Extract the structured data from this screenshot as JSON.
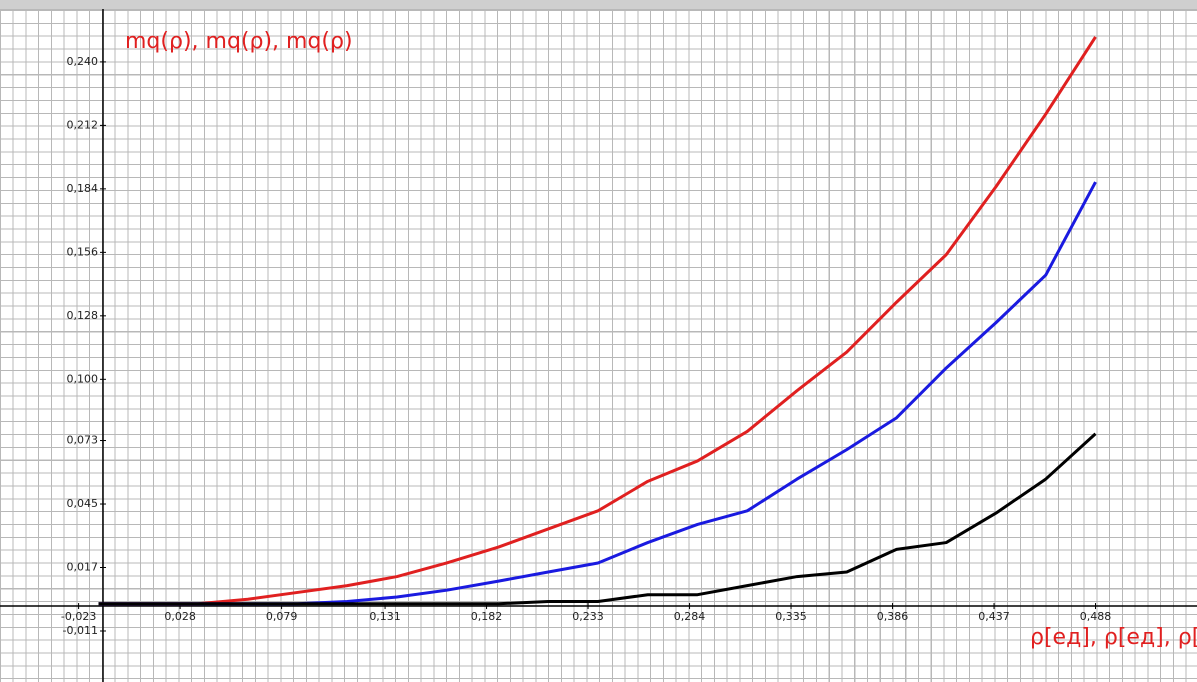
{
  "chart_data": {
    "type": "line",
    "title": "mq(ρ), mq(ρ), mq(ρ)",
    "x_label": "ρ[ед], ρ[ед], ρ[ед]",
    "x": [
      -0.013,
      0.012,
      0.037,
      0.062,
      0.087,
      0.112,
      0.137,
      0.162,
      0.188,
      0.213,
      0.238,
      0.263,
      0.288,
      0.313,
      0.338,
      0.363,
      0.388,
      0.413,
      0.438,
      0.463,
      0.488
    ],
    "series": [
      {
        "color": "#e02020",
        "values": [
          0.001,
          0.001,
          0.001,
          0.003,
          0.006,
          0.009,
          0.013,
          0.019,
          0.026,
          0.034,
          0.042,
          0.055,
          0.064,
          0.077,
          0.095,
          0.112,
          0.134,
          0.155,
          0.185,
          0.217,
          0.251
        ]
      },
      {
        "color": "#1a1ae0",
        "values": [
          0.001,
          0.001,
          0.001,
          0.001,
          0.001,
          0.002,
          0.004,
          0.007,
          0.011,
          0.015,
          0.019,
          0.028,
          0.036,
          0.042,
          0.056,
          0.069,
          0.083,
          0.105,
          0.125,
          0.146,
          0.187
        ]
      },
      {
        "color": "#000000",
        "values": [
          0.001,
          0.001,
          0.001,
          0.001,
          0.001,
          0.001,
          0.001,
          0.001,
          0.001,
          0.002,
          0.002,
          0.005,
          0.005,
          0.009,
          0.013,
          0.015,
          0.025,
          0.028,
          0.041,
          0.056,
          0.076
        ]
      }
    ],
    "xlim": [
      -0.0625,
      0.539
    ],
    "ylim": [
      -0.0335,
      0.2673
    ],
    "xticks": [
      {
        "value": -0.023,
        "label": "-0,023"
      },
      {
        "value": 0.028,
        "label": "0,028"
      },
      {
        "value": 0.079,
        "label": "0,079"
      },
      {
        "value": 0.131,
        "label": "0,131"
      },
      {
        "value": 0.182,
        "label": "0,182"
      },
      {
        "value": 0.233,
        "label": "0,233"
      },
      {
        "value": 0.284,
        "label": "0,284"
      },
      {
        "value": 0.335,
        "label": "0,335"
      },
      {
        "value": 0.386,
        "label": "0,386"
      },
      {
        "value": 0.437,
        "label": "0,437"
      },
      {
        "value": 0.488,
        "label": "0,488"
      }
    ],
    "yticks": [
      {
        "value": -0.011,
        "label": "-0,011"
      },
      {
        "value": 0.017,
        "label": "0,017"
      },
      {
        "value": 0.045,
        "label": "0,045"
      },
      {
        "value": 0.073,
        "label": "0,073"
      },
      {
        "value": 0.1,
        "label": "0,100"
      },
      {
        "value": 0.128,
        "label": "0,128"
      },
      {
        "value": 0.156,
        "label": "0,156"
      },
      {
        "value": 0.184,
        "label": "0,184"
      },
      {
        "value": 0.212,
        "label": "0,212"
      },
      {
        "value": 0.24,
        "label": "0,240"
      }
    ]
  }
}
